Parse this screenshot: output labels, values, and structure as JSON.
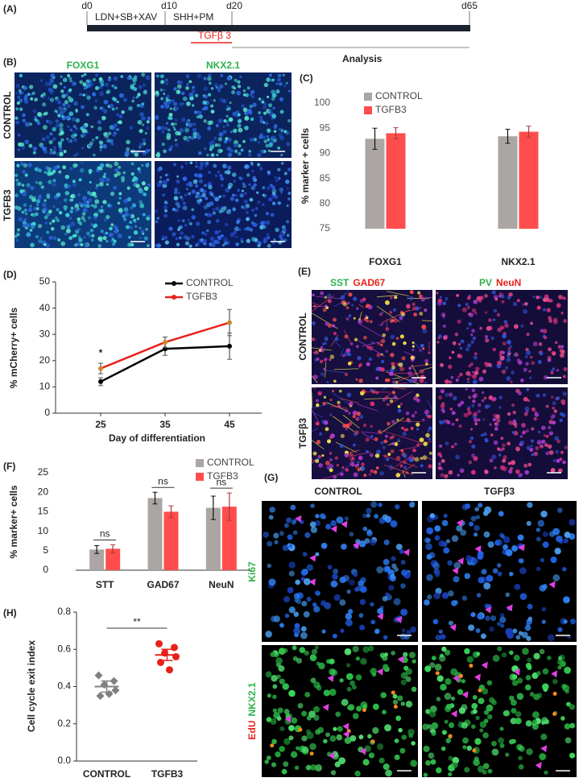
{
  "panels": {
    "A": {
      "label": "(A)",
      "days": [
        "d0",
        "d10",
        "d20",
        "d65"
      ],
      "stages": [
        "LDN+SB+XAV",
        "SHH+PM"
      ],
      "treatment": "TGFβ 3",
      "analysis": "Analysis"
    },
    "B": {
      "label": "(B)",
      "columns": [
        "FOXG1",
        "NKX2.1"
      ],
      "rows": [
        "CONTROL",
        "TGFB3"
      ]
    },
    "E": {
      "label": "(E)",
      "columns": [
        [
          "SST",
          "GAD67"
        ],
        [
          "PV",
          "NeuN"
        ]
      ],
      "rows": [
        "CONTROL",
        "TGFβ3"
      ]
    },
    "G": {
      "label": "(G)",
      "columns": [
        "CONTROL",
        "TGFβ3"
      ],
      "rows": [
        [
          "Ki67"
        ],
        [
          "EdU",
          "NKX2.1"
        ]
      ]
    }
  },
  "chart_data": [
    {
      "label": "(C)",
      "type": "bar",
      "y_label": "% marker + cells",
      "categories": [
        "FOXG1",
        "NKX2.1"
      ],
      "series": [
        {
          "name": "CONTROL",
          "color": "#aba6a3",
          "values": [
            92.9,
            93.4
          ],
          "errors": [
            2.1,
            1.4
          ]
        },
        {
          "name": "TGFB3",
          "color": "#ff4d4d",
          "values": [
            94.0,
            94.3
          ],
          "errors": [
            1.1,
            1.1
          ]
        }
      ],
      "ylim": [
        75,
        100
      ],
      "yticks": [
        75,
        80,
        85,
        90,
        95,
        100
      ],
      "grid": false
    },
    {
      "label": "(D)",
      "type": "line",
      "y_label": "% mCherry+ cells",
      "x_label": "Day of differentiation",
      "x": [
        25,
        35,
        45
      ],
      "xlim": [
        18,
        50
      ],
      "xticks": [
        25,
        35,
        45
      ],
      "series": [
        {
          "name": "CONTROL",
          "color": "#000000",
          "values": [
            12,
            24.5,
            25.5
          ],
          "errors": [
            1.5,
            2.5,
            5
          ]
        },
        {
          "name": "TGFB3",
          "color": "#e8221b",
          "values": [
            17,
            27,
            34.5
          ],
          "errors": [
            2,
            2,
            5
          ]
        }
      ],
      "ylim": [
        0,
        50
      ],
      "yticks": [
        0,
        10,
        20,
        30,
        40,
        50
      ],
      "annotations": [
        "*",
        null,
        null
      ]
    },
    {
      "label": "(F)",
      "type": "bar",
      "y_label": "% marker+ cells",
      "categories": [
        "STT",
        "GAD67",
        "NeuN"
      ],
      "series": [
        {
          "name": "CONTROL",
          "color": "#aba6a3",
          "values": [
            5.3,
            18.5,
            16
          ],
          "errors": [
            1,
            1.5,
            3
          ]
        },
        {
          "name": "TGFB3",
          "color": "#ff4d4d",
          "values": [
            5.5,
            15,
            16.3
          ],
          "errors": [
            1,
            1.5,
            3.5
          ]
        }
      ],
      "ylim": [
        0,
        25
      ],
      "yticks": [
        0,
        5,
        10,
        15,
        20,
        25
      ],
      "grid": false,
      "annotations": [
        "ns",
        "ns",
        "ns"
      ]
    },
    {
      "label": "(H)",
      "type": "strip",
      "y_label": "Cell cycle exit index",
      "categories": [
        "CONTROL",
        "TGFB3"
      ],
      "series": [
        {
          "color": "#808080",
          "marker": "diamond",
          "values": [
            0.46,
            0.43,
            0.41,
            0.38,
            0.35,
            0.36
          ],
          "mean": 0.4,
          "sem": 0.03
        },
        {
          "color": "#e8221b",
          "marker": "circle",
          "values": [
            0.63,
            0.61,
            0.58,
            0.56,
            0.53,
            0.49
          ],
          "mean": 0.57,
          "sem": 0.03
        }
      ],
      "ylim": [
        0,
        0.8
      ],
      "yticks": [
        {
          "value": 0,
          "label": "0.0"
        },
        0.2,
        0.4,
        0.6,
        0.8
      ],
      "annotation": "**"
    }
  ]
}
